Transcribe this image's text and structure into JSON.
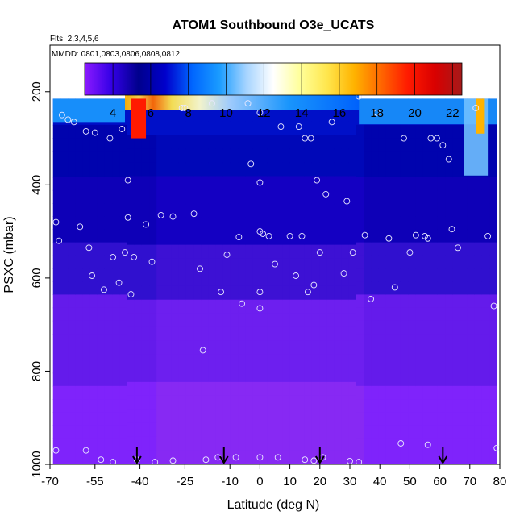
{
  "chart_data": {
    "type": "heatmap",
    "title": "ATOM1 Southbound O3e_UCATS",
    "flights_note": "Flts: 2,3,4,5,6",
    "dates_note": "MMDD: 0801,0803,0806,0808,0812",
    "xlabel": "Latitude (deg N)",
    "ylabel": "PSXC (mbar)",
    "xlim": [
      -70,
      80
    ],
    "ylim": [
      1000,
      100
    ],
    "x_ticks": [
      "-70",
      "-55",
      "-40",
      "-25",
      "-10",
      "0",
      "10",
      "20",
      "30",
      "40",
      "50",
      "60",
      "70",
      "80"
    ],
    "y_ticks": [
      "200",
      "400",
      "600",
      "800",
      "1000"
    ],
    "colorbar": {
      "range": [
        2.5,
        22.5
      ],
      "ticks": [
        "4",
        "6",
        "8",
        "10",
        "12",
        "14",
        "16",
        "18",
        "20",
        "22"
      ],
      "colors": [
        "#8c1aff",
        "#3300e6",
        "#00008c",
        "#0000cc",
        "#0066ff",
        "#1a9cff",
        "#a6d4ff",
        "#ffffff",
        "#ffff99",
        "#ffe64d",
        "#ffb300",
        "#ff6600",
        "#ff1a00",
        "#d90000",
        "#a61a1a"
      ]
    },
    "field_extent": {
      "lat_min": -69,
      "lat_max": 79,
      "surface_pressure": 1000,
      "top_pressure_mid": 175,
      "top_pressure_edges": 215
    },
    "flight_sample_points": [
      [
        -68,
        480
      ],
      [
        -67,
        520
      ],
      [
        -66,
        250
      ],
      [
        -64,
        260
      ],
      [
        -62,
        265
      ],
      [
        -60,
        490
      ],
      [
        -58,
        285
      ],
      [
        -57,
        535
      ],
      [
        -56,
        595
      ],
      [
        -55,
        288
      ],
      [
        -52,
        625
      ],
      [
        -50,
        300
      ],
      [
        -49,
        555
      ],
      [
        -47,
        610
      ],
      [
        -46,
        280
      ],
      [
        -45,
        545
      ],
      [
        -44,
        470
      ],
      [
        -44,
        390
      ],
      [
        -43,
        635
      ],
      [
        -42,
        555
      ],
      [
        -38,
        485
      ],
      [
        -36,
        565
      ],
      [
        -33,
        465
      ],
      [
        -29,
        468
      ],
      [
        -26,
        235
      ],
      [
        -25,
        235
      ],
      [
        -22,
        462
      ],
      [
        -20,
        580
      ],
      [
        -19,
        755
      ],
      [
        -16,
        225
      ],
      [
        -13,
        630
      ],
      [
        -11,
        550
      ],
      [
        -7,
        512
      ],
      [
        -6,
        655
      ],
      [
        -4,
        225
      ],
      [
        0,
        245
      ],
      [
        -3,
        355
      ],
      [
        0,
        500
      ],
      [
        1,
        505
      ],
      [
        3,
        510
      ],
      [
        0,
        395
      ],
      [
        0,
        630
      ],
      [
        0,
        665
      ],
      [
        5,
        570
      ],
      [
        7,
        275
      ],
      [
        10,
        510
      ],
      [
        12,
        595
      ],
      [
        13,
        275
      ],
      [
        14,
        510
      ],
      [
        15,
        300
      ],
      [
        16,
        630
      ],
      [
        17,
        300
      ],
      [
        18,
        615
      ],
      [
        19,
        390
      ],
      [
        20,
        545
      ],
      [
        22,
        420
      ],
      [
        24,
        265
      ],
      [
        26,
        185
      ],
      [
        28,
        590
      ],
      [
        29,
        435
      ],
      [
        31,
        545
      ],
      [
        33,
        210
      ],
      [
        35,
        508
      ],
      [
        37,
        645
      ],
      [
        39,
        245
      ],
      [
        43,
        515
      ],
      [
        45,
        620
      ],
      [
        48,
        300
      ],
      [
        50,
        545
      ],
      [
        52,
        508
      ],
      [
        55,
        510
      ],
      [
        56,
        515
      ],
      [
        57,
        300
      ],
      [
        59,
        300
      ],
      [
        61,
        315
      ],
      [
        63,
        345
      ],
      [
        64,
        495
      ],
      [
        66,
        535
      ],
      [
        72,
        235
      ],
      [
        76,
        510
      ],
      [
        78,
        660
      ],
      [
        -68,
        970
      ],
      [
        -58,
        970
      ],
      [
        -53,
        990
      ],
      [
        -49,
        995
      ],
      [
        -41,
        990
      ],
      [
        -35,
        995
      ],
      [
        -29,
        992
      ],
      [
        -18,
        990
      ],
      [
        -14,
        985
      ],
      [
        -8,
        985
      ],
      [
        0,
        985
      ],
      [
        6,
        985
      ],
      [
        15,
        990
      ],
      [
        18,
        992
      ],
      [
        21,
        985
      ],
      [
        30,
        993
      ],
      [
        33,
        995
      ],
      [
        47,
        955
      ],
      [
        56,
        958
      ],
      [
        79,
        965
      ]
    ],
    "flight_markers_lat": [
      -41,
      -12,
      20,
      61
    ]
  }
}
